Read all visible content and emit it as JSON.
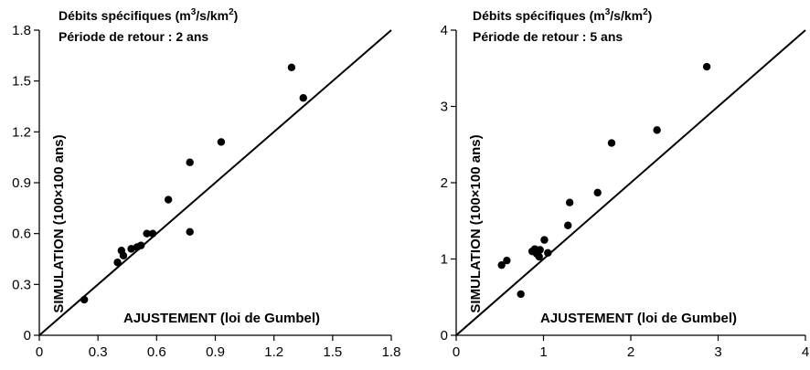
{
  "chart_data": [
    {
      "type": "scatter",
      "title_line1": "Débits spécifiques (m",
      "title_sup1": "3",
      "title_mid": "/s/km",
      "title_sup2": "2",
      "title_end": ")",
      "subtitle": "Période de retour : 2 ans",
      "xlabel": "AJUSTEMENT (loi de Gumbel)",
      "ylabel": "SIMULATION (100×100 ans)",
      "xlim": [
        0,
        1.8
      ],
      "ylim": [
        0,
        1.8
      ],
      "xticks": [
        "0",
        "0.3",
        "0.6",
        "0.9",
        "1.2",
        "1.5",
        "1.8"
      ],
      "yticks": [
        "0",
        "0.3",
        "0.6",
        "0.9",
        "1.2",
        "1.5",
        "1.8"
      ],
      "tick_values": [
        0,
        0.3,
        0.6,
        0.9,
        1.2,
        1.5,
        1.8
      ],
      "reference_line": "y = x",
      "points": [
        {
          "x": 0.23,
          "y": 0.21
        },
        {
          "x": 0.4,
          "y": 0.43
        },
        {
          "x": 0.42,
          "y": 0.5
        },
        {
          "x": 0.43,
          "y": 0.47
        },
        {
          "x": 0.47,
          "y": 0.51
        },
        {
          "x": 0.5,
          "y": 0.52
        },
        {
          "x": 0.52,
          "y": 0.53
        },
        {
          "x": 0.55,
          "y": 0.6
        },
        {
          "x": 0.58,
          "y": 0.6
        },
        {
          "x": 0.66,
          "y": 0.8
        },
        {
          "x": 0.77,
          "y": 1.02
        },
        {
          "x": 0.77,
          "y": 0.61
        },
        {
          "x": 0.93,
          "y": 1.14
        },
        {
          "x": 1.29,
          "y": 1.58
        },
        {
          "x": 1.35,
          "y": 1.4
        }
      ]
    },
    {
      "type": "scatter",
      "title_line1": "Débits spécifiques (m",
      "title_sup1": "3",
      "title_mid": "/s/km",
      "title_sup2": "2",
      "title_end": ")",
      "subtitle": "Période de retour : 5 ans",
      "xlabel": "AJUSTEMENT (loi de Gumbel)",
      "ylabel": "SIMULATION (100×100 ans)",
      "xlim": [
        0,
        4
      ],
      "ylim": [
        0,
        4
      ],
      "xticks": [
        "0",
        "1",
        "2",
        "3",
        "4"
      ],
      "yticks": [
        "0",
        "1",
        "2",
        "3",
        "4"
      ],
      "tick_values": [
        0,
        1,
        2,
        3,
        4
      ],
      "reference_line": "y = x",
      "points": [
        {
          "x": 0.52,
          "y": 0.92
        },
        {
          "x": 0.58,
          "y": 0.98
        },
        {
          "x": 0.74,
          "y": 0.54
        },
        {
          "x": 0.87,
          "y": 1.1
        },
        {
          "x": 0.9,
          "y": 1.13
        },
        {
          "x": 0.92,
          "y": 1.07
        },
        {
          "x": 0.95,
          "y": 1.03
        },
        {
          "x": 0.96,
          "y": 1.12
        },
        {
          "x": 1.01,
          "y": 1.25
        },
        {
          "x": 1.05,
          "y": 1.08
        },
        {
          "x": 1.28,
          "y": 1.44
        },
        {
          "x": 1.3,
          "y": 1.74
        },
        {
          "x": 1.62,
          "y": 1.87
        },
        {
          "x": 1.78,
          "y": 2.52
        },
        {
          "x": 2.3,
          "y": 2.69
        },
        {
          "x": 2.87,
          "y": 3.52
        }
      ]
    }
  ]
}
